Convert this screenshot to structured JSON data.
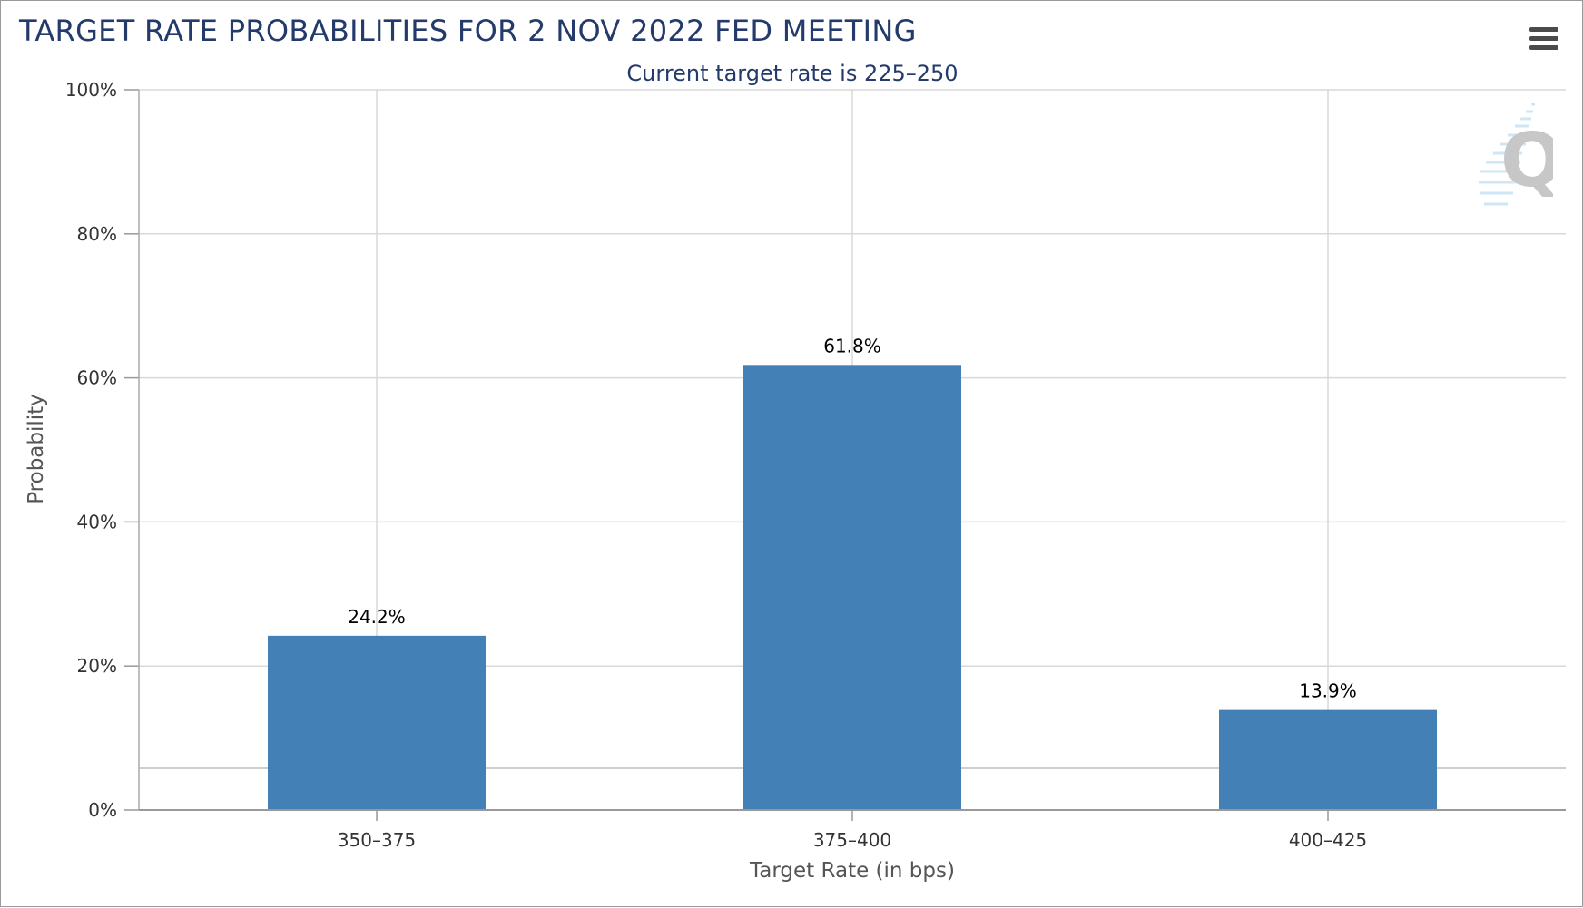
{
  "chart_data": {
    "type": "bar",
    "title": "TARGET RATE PROBABILITIES FOR 2 NOV 2022 FED MEETING",
    "subtitle": "Current target rate is 225–250",
    "xlabel": "Target Rate (in bps)",
    "ylabel": "Probability",
    "categories": [
      "350–375",
      "375–400",
      "400–425"
    ],
    "values": [
      24.2,
      61.8,
      13.9
    ],
    "data_labels": [
      "24.2%",
      "61.8%",
      "13.9%"
    ],
    "ylim": [
      0,
      100
    ],
    "yticks": [
      0,
      20,
      40,
      60,
      80,
      100
    ],
    "ytick_labels": [
      "0%",
      "20%",
      "40%",
      "60%",
      "80%",
      "100%"
    ],
    "grid": true,
    "legend": "none",
    "bar_color": "#4280b6"
  },
  "toolbar": {
    "menu_icon": "hamburger-menu-icon"
  },
  "watermark": {
    "icon": "quikstrike-logo-icon"
  }
}
